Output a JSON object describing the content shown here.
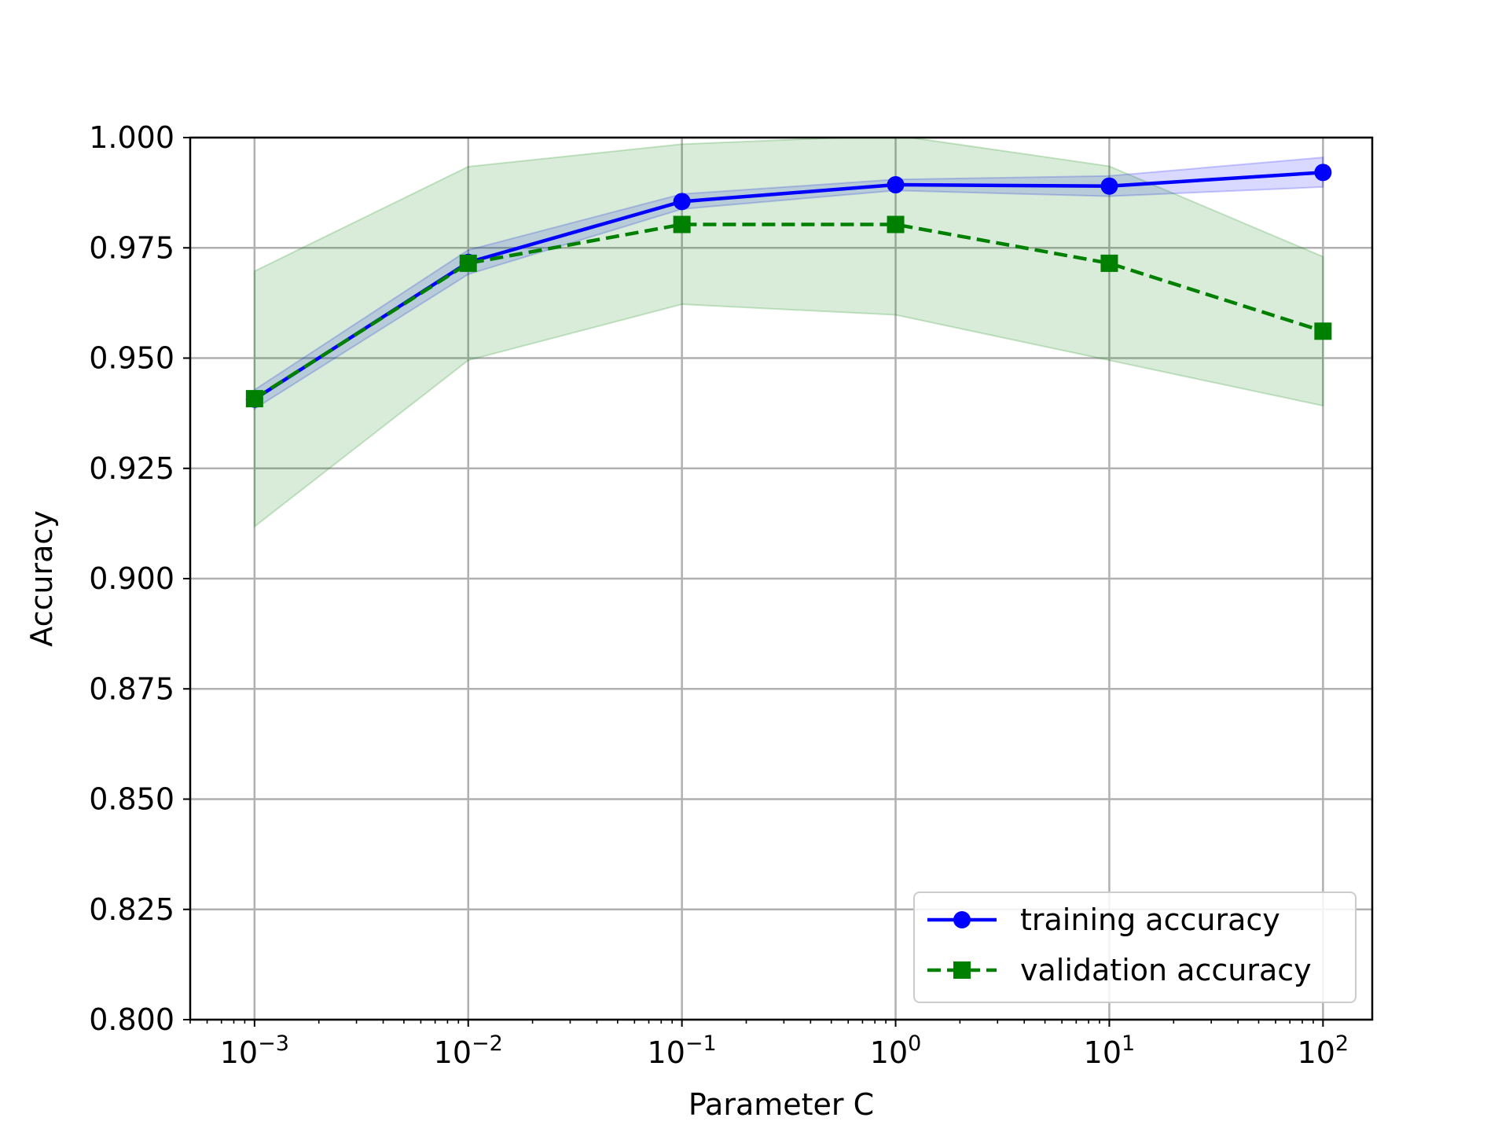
{
  "chart_data": {
    "type": "line",
    "xscale": "log",
    "x": [
      0.001,
      0.01,
      0.1,
      1,
      10,
      100
    ],
    "xlim": [
      0.0005,
      170
    ],
    "ylim": [
      0.8,
      1.0
    ],
    "grid": true,
    "xlabel": "Parameter C",
    "ylabel": "Accuracy",
    "x_tick_labels": [
      {
        "base": "10",
        "exp": "−3"
      },
      {
        "base": "10",
        "exp": "−2"
      },
      {
        "base": "10",
        "exp": "−1"
      },
      {
        "base": "10",
        "exp": "0"
      },
      {
        "base": "10",
        "exp": "1"
      },
      {
        "base": "10",
        "exp": "2"
      }
    ],
    "y_ticks": [
      0.8,
      0.825,
      0.85,
      0.875,
      0.9,
      0.925,
      0.95,
      0.975,
      1.0
    ],
    "y_tick_labels": [
      "0.800",
      "0.825",
      "0.850",
      "0.875",
      "0.900",
      "0.925",
      "0.950",
      "0.975",
      "1.000"
    ],
    "legend_position": "lower-right",
    "series": [
      {
        "name": "training accuracy",
        "color": "#0000ff",
        "marker": "circle",
        "linestyle": "solid",
        "values": [
          0.9407,
          0.9717,
          0.9855,
          0.9893,
          0.989,
          0.9921
        ],
        "band_upper": [
          0.9428,
          0.9745,
          0.9872,
          0.9905,
          0.9913,
          0.9955
        ],
        "band_lower": [
          0.9385,
          0.969,
          0.9838,
          0.988,
          0.9867,
          0.9888
        ]
      },
      {
        "name": "validation accuracy",
        "color": "#008000",
        "marker": "square",
        "linestyle": "dashed",
        "values": [
          0.9408,
          0.9715,
          0.9803,
          0.9803,
          0.9715,
          0.9561
        ],
        "band_upper": [
          0.9697,
          0.9934,
          0.9985,
          1.0005,
          0.9935,
          0.973
        ],
        "band_lower": [
          0.9118,
          0.9495,
          0.9622,
          0.9598,
          0.9495,
          0.9392
        ]
      }
    ]
  }
}
